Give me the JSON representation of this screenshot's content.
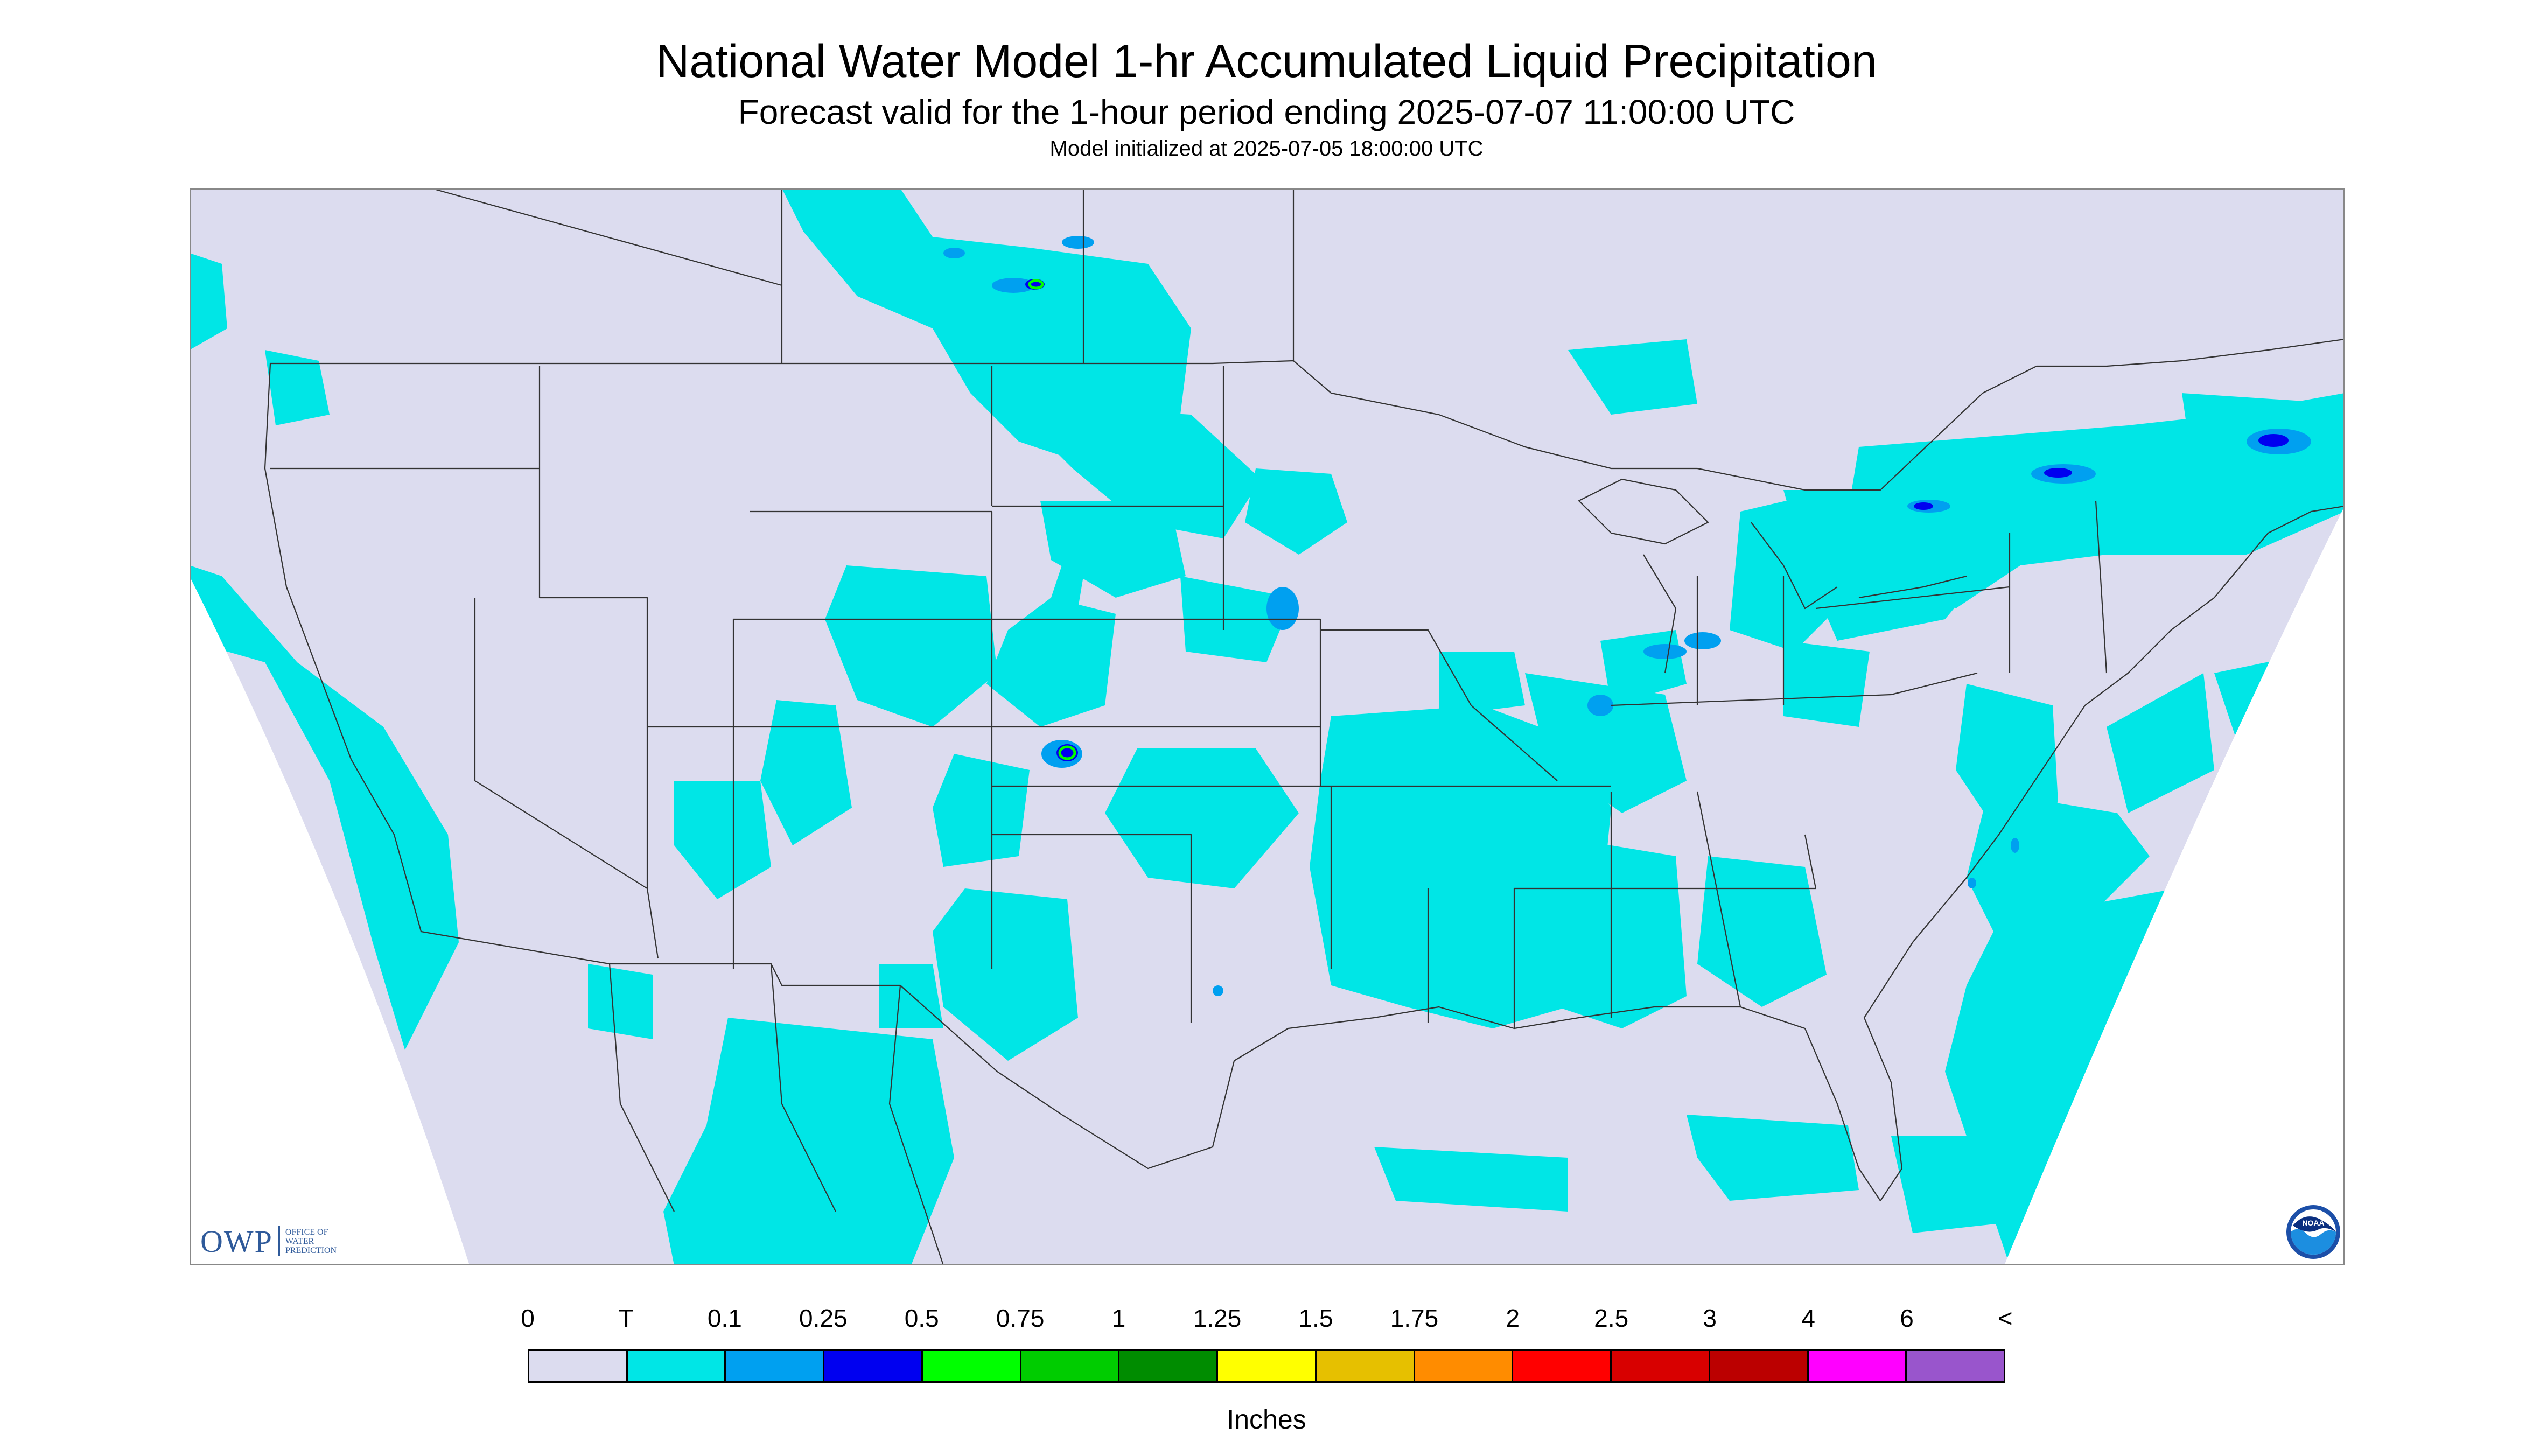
{
  "header": {
    "title": "National Water Model 1-hr Accumulated Liquid Precipitation",
    "subtitle": "Forecast valid for the 1-hour period ending 2025-07-07 11:00:00 UTC",
    "init": "Model initialized at 2025-07-05 18:00:00 UTC"
  },
  "colors": {
    "background_no_precip": "#dcdcef",
    "trace": "#00e6e6",
    "border": "#333333",
    "outside_domain": "#ffffff"
  },
  "legend": {
    "units": "Inches",
    "tick_labels": [
      "0",
      "T",
      "0.1",
      "0.25",
      "0.5",
      "0.75",
      "1",
      "1.25",
      "1.5",
      "1.75",
      "2",
      "2.5",
      "3",
      "4",
      "6",
      "<"
    ],
    "colors": [
      "#dcdcef",
      "#00e6e6",
      "#00a0f0",
      "#0000f0",
      "#00ff00",
      "#00cc00",
      "#008c00",
      "#ffff00",
      "#e6c000",
      "#ff8c00",
      "#ff0000",
      "#d80000",
      "#bb0000",
      "#ff00ff",
      "#9955cc"
    ]
  },
  "logos": {
    "owp_mark": "OWP",
    "owp_text": [
      "OFFICE OF",
      "WATER",
      "PREDICTION"
    ],
    "noaa": "NOAA"
  },
  "icons": {
    "owp": "owp-logo-icon",
    "noaa": "noaa-logo-icon"
  }
}
